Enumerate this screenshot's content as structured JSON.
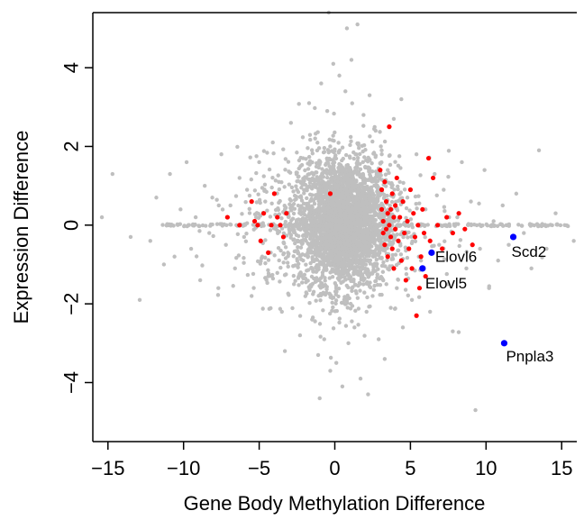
{
  "chart_data": {
    "type": "scatter",
    "title": "",
    "xlabel": "Gene Body Methylation Difference",
    "ylabel": "Expression Difference",
    "xlim": [
      -16,
      16
    ],
    "ylim": [
      -5.5,
      5.4
    ],
    "x_ticks": [
      -15,
      -10,
      -5,
      0,
      5,
      10,
      15
    ],
    "x_tick_labels": [
      "−15",
      "−10",
      "−5",
      "0",
      "5",
      "10",
      "15"
    ],
    "y_ticks": [
      -4,
      -2,
      0,
      2,
      4
    ],
    "y_tick_labels": [
      "−4",
      "−2",
      "0",
      "2",
      "4"
    ],
    "grid": false,
    "legend": "none",
    "colors": {
      "background": "#bfbfbf",
      "red": "#ff0000",
      "highlight": "#0000ff"
    },
    "background_points_description_note": "",
    "background_points": [
      [
        -15.4,
        0.2
      ],
      [
        -14.7,
        1.3
      ],
      [
        -13.5,
        -0.3
      ],
      [
        -12.9,
        -1.9
      ],
      [
        -12.2,
        -0.4
      ],
      [
        -11.8,
        0.7
      ],
      [
        -11.3,
        -1.0
      ],
      [
        -10.9,
        1.3
      ],
      [
        -10.6,
        -0.8
      ],
      [
        -10.2,
        0.4
      ],
      [
        -9.8,
        1.6
      ],
      [
        -9.5,
        -0.6
      ],
      [
        -9.2,
        0.2
      ],
      [
        -8.9,
        -1.4
      ],
      [
        -8.6,
        1.0
      ],
      [
        -8.3,
        -0.2
      ],
      [
        -8.1,
        0.7
      ],
      [
        -7.7,
        -1.6
      ],
      [
        -7.5,
        1.8
      ],
      [
        -7.2,
        -0.5
      ],
      [
        -6.9,
        0.5
      ],
      [
        -6.6,
        -1.1
      ],
      [
        -6.3,
        1.2
      ],
      [
        -6.0,
        -0.3
      ],
      [
        -5.8,
        0.9
      ],
      [
        -5.5,
        -1.8
      ],
      [
        -5.2,
        0.2
      ],
      [
        -5.0,
        1.6
      ],
      [
        -4.8,
        -0.8
      ],
      [
        -4.6,
        0.6
      ],
      [
        -4.4,
        -1.3
      ],
      [
        -4.1,
        2.1
      ],
      [
        -3.9,
        -0.1
      ],
      [
        -3.7,
        1.1
      ],
      [
        -3.5,
        -2.2
      ],
      [
        -3.3,
        0.4
      ],
      [
        -3.1,
        -0.7
      ],
      [
        -2.9,
        2.6
      ],
      [
        -2.7,
        -1.5
      ],
      [
        -2.5,
        0.9
      ],
      [
        -2.3,
        -2.8
      ],
      [
        -2.1,
        1.7
      ],
      [
        -1.9,
        -0.4
      ],
      [
        -1.7,
        3.1
      ],
      [
        -1.5,
        -2.4
      ],
      [
        -1.3,
        2.2
      ],
      [
        -1.1,
        -3.3
      ],
      [
        -0.9,
        3.6
      ],
      [
        -0.7,
        -2.9
      ],
      [
        -0.5,
        2.9
      ],
      [
        -0.3,
        -3.7
      ],
      [
        -0.1,
        4.1
      ],
      [
        0.1,
        -3.5
      ],
      [
        0.3,
        3.8
      ],
      [
        0.5,
        -4.1
      ],
      [
        0.7,
        3.4
      ],
      [
        0.9,
        -3.0
      ],
      [
        1.1,
        4.2
      ],
      [
        1.3,
        -2.6
      ],
      [
        1.5,
        5.1
      ],
      [
        1.7,
        -3.9
      ],
      [
        1.9,
        2.8
      ],
      [
        2.1,
        -2.2
      ],
      [
        2.3,
        3.3
      ],
      [
        2.5,
        -1.8
      ],
      [
        2.7,
        2.4
      ],
      [
        2.9,
        -2.9
      ],
      [
        3.1,
        1.9
      ],
      [
        3.3,
        -3.4
      ],
      [
        3.5,
        1.4
      ],
      [
        3.7,
        -2.1
      ],
      [
        3.9,
        2.7
      ],
      [
        4.1,
        -1.6
      ],
      [
        4.3,
        1.1
      ],
      [
        4.5,
        -2.6
      ],
      [
        4.8,
        0.7
      ],
      [
        5.1,
        -1.9
      ],
      [
        5.4,
        1.8
      ],
      [
        5.7,
        -0.9
      ],
      [
        6.0,
        0.4
      ],
      [
        6.3,
        -2.2
      ],
      [
        6.6,
        1.3
      ],
      [
        6.9,
        -0.5
      ],
      [
        7.2,
        0.9
      ],
      [
        7.5,
        -1.5
      ],
      [
        7.8,
        -2.7
      ],
      [
        8.1,
        0.2
      ],
      [
        8.4,
        1.6
      ],
      [
        8.7,
        -1.1
      ],
      [
        9.0,
        0.6
      ],
      [
        9.3,
        -4.7
      ],
      [
        9.6,
        -0.6
      ],
      [
        9.9,
        1.4
      ],
      [
        10.2,
        -1.6
      ],
      [
        10.5,
        0.1
      ],
      [
        10.8,
        -0.9
      ],
      [
        11.1,
        0.5
      ],
      [
        11.5,
        -0.5
      ],
      [
        12.0,
        0.8
      ],
      [
        12.5,
        -0.2
      ],
      [
        13.0,
        -1.1
      ],
      [
        13.5,
        1.9
      ],
      [
        14.0,
        -0.6
      ],
      [
        14.6,
        0.3
      ],
      [
        15.2,
        0.0
      ],
      [
        15.8,
        -0.4
      ],
      [
        -0.4,
        5.4
      ],
      [
        0.8,
        5.0
      ],
      [
        -1.0,
        -4.4
      ],
      [
        2.2,
        -4.3
      ],
      [
        -3.3,
        -3.2
      ],
      [
        4.4,
        3.2
      ]
    ],
    "red_points": [
      [
        -7.1,
        0.2
      ],
      [
        -6.3,
        0.0
      ],
      [
        -5.5,
        0.6
      ],
      [
        -5.3,
        0.1
      ],
      [
        -5.1,
        0.0
      ],
      [
        -4.9,
        -0.4
      ],
      [
        -4.7,
        0.3
      ],
      [
        -4.4,
        -0.7
      ],
      [
        -4.2,
        0.0
      ],
      [
        -4.0,
        0.8
      ],
      [
        -3.8,
        0.2
      ],
      [
        -3.6,
        0.0
      ],
      [
        -3.4,
        -0.3
      ],
      [
        -3.2,
        0.3
      ],
      [
        -0.3,
        0.8
      ],
      [
        3.0,
        1.4
      ],
      [
        3.1,
        0.9
      ],
      [
        3.1,
        0.4
      ],
      [
        3.2,
        0.1
      ],
      [
        3.2,
        -0.2
      ],
      [
        3.3,
        -0.5
      ],
      [
        3.3,
        1.1
      ],
      [
        3.4,
        0.6
      ],
      [
        3.4,
        -0.1
      ],
      [
        3.5,
        0.3
      ],
      [
        3.5,
        -0.8
      ],
      [
        3.6,
        2.5
      ],
      [
        3.6,
        0.0
      ],
      [
        3.7,
        0.4
      ],
      [
        3.7,
        -0.3
      ],
      [
        3.8,
        0.8
      ],
      [
        3.8,
        -0.6
      ],
      [
        3.9,
        0.2
      ],
      [
        3.9,
        -1.1
      ],
      [
        4.0,
        0.5
      ],
      [
        4.0,
        -0.1
      ],
      [
        4.1,
        1.2
      ],
      [
        4.2,
        -0.4
      ],
      [
        4.3,
        0.2
      ],
      [
        4.4,
        -0.9
      ],
      [
        4.5,
        0.6
      ],
      [
        4.6,
        -0.2
      ],
      [
        4.7,
        -1.4
      ],
      [
        4.8,
        0.1
      ],
      [
        4.9,
        -0.6
      ],
      [
        5.0,
        0.9
      ],
      [
        5.1,
        -1.1
      ],
      [
        5.2,
        0.3
      ],
      [
        5.3,
        -0.3
      ],
      [
        5.4,
        -2.3
      ],
      [
        5.5,
        0.0
      ],
      [
        5.6,
        -1.6
      ],
      [
        5.7,
        -0.8
      ],
      [
        5.8,
        0.4
      ],
      [
        5.9,
        -0.2
      ],
      [
        6.0,
        -1.3
      ],
      [
        6.2,
        1.7
      ],
      [
        6.3,
        -0.4
      ],
      [
        6.5,
        1.2
      ],
      [
        6.8,
        0.0
      ],
      [
        7.1,
        -0.6
      ],
      [
        7.4,
        0.2
      ],
      [
        7.8,
        -0.2
      ],
      [
        8.2,
        0.3
      ],
      [
        8.6,
        -0.1
      ],
      [
        9.1,
        -0.5
      ]
    ],
    "highlighted_genes": [
      {
        "name": "Scd2",
        "x": 11.8,
        "y": -0.3
      },
      {
        "name": "Elovl6",
        "x": 6.4,
        "y": -0.7
      },
      {
        "name": "Elovl5",
        "x": 5.8,
        "y": -1.1
      },
      {
        "name": "Pnpla3",
        "x": 11.2,
        "y": -3.0
      }
    ]
  }
}
